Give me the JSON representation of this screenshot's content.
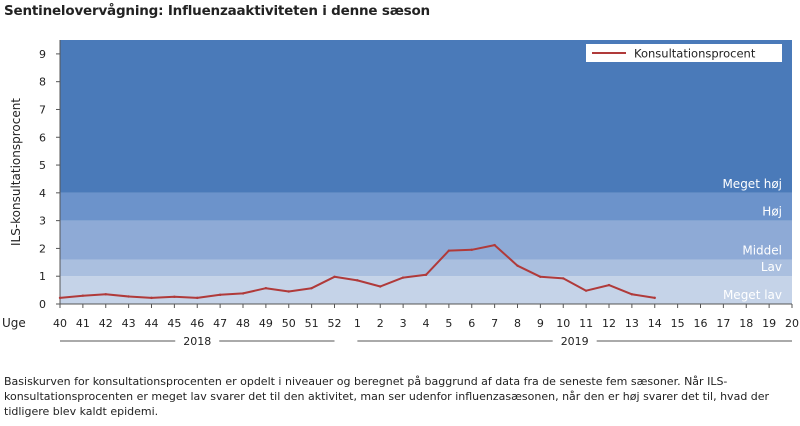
{
  "title": "Sentinelovervågning: Influenzaaktiviteten i denne sæson",
  "chart_data": {
    "type": "line",
    "ylabel": "ILS-konsultationsprocent",
    "xlabel": "Uge",
    "ylim": [
      0,
      9.5
    ],
    "yticks": [
      0,
      1,
      2,
      3,
      4,
      5,
      6,
      7,
      8,
      9
    ],
    "categories": [
      "40",
      "41",
      "42",
      "43",
      "44",
      "45",
      "46",
      "47",
      "48",
      "49",
      "50",
      "51",
      "52",
      "1",
      "2",
      "3",
      "4",
      "5",
      "6",
      "7",
      "8",
      "9",
      "10",
      "11",
      "12",
      "13",
      "14",
      "15",
      "16",
      "17",
      "18",
      "19",
      "20"
    ],
    "year_labels": [
      {
        "label": "2018",
        "from": "40",
        "to": "52"
      },
      {
        "label": "2019",
        "from": "1",
        "to": "20"
      }
    ],
    "bands": [
      {
        "name": "Meget lav",
        "from": 0,
        "to": 1.0,
        "color": "#c5d3e8"
      },
      {
        "name": "Lav",
        "from": 1.0,
        "to": 1.6,
        "color": "#aabfdf"
      },
      {
        "name": "Middel",
        "from": 1.6,
        "to": 3.0,
        "color": "#8eaad6"
      },
      {
        "name": "Høj",
        "from": 3.0,
        "to": 4.0,
        "color": "#6c93cb"
      },
      {
        "name": "Meget høj",
        "from": 4.0,
        "to": 9.5,
        "color": "#4a7ab9"
      }
    ],
    "series": [
      {
        "name": "Konsultationsprocent",
        "color": "#b03a3a",
        "values": [
          0.22,
          0.3,
          0.35,
          0.27,
          0.22,
          0.26,
          0.22,
          0.33,
          0.38,
          0.57,
          0.45,
          0.57,
          0.98,
          0.85,
          0.63,
          0.95,
          1.05,
          1.92,
          1.95,
          2.12,
          1.38,
          0.98,
          0.92,
          0.48,
          0.68,
          0.35,
          0.22,
          null,
          null,
          null,
          null,
          null,
          null
        ]
      }
    ],
    "legend_position": "top-right",
    "grid": false
  },
  "footnote": [
    "Basiskurven for konsultationsprocenten er opdelt i niveauer og beregnet på baggrund af data fra de seneste fem sæsoner. Når ILS-konsultationsprocenten er meget lav svarer det til den aktivitet, man ser udenfor influenzasæsonen, når den er høj svarer det til, hvad der tidligere blev kaldt epidemi."
  ]
}
